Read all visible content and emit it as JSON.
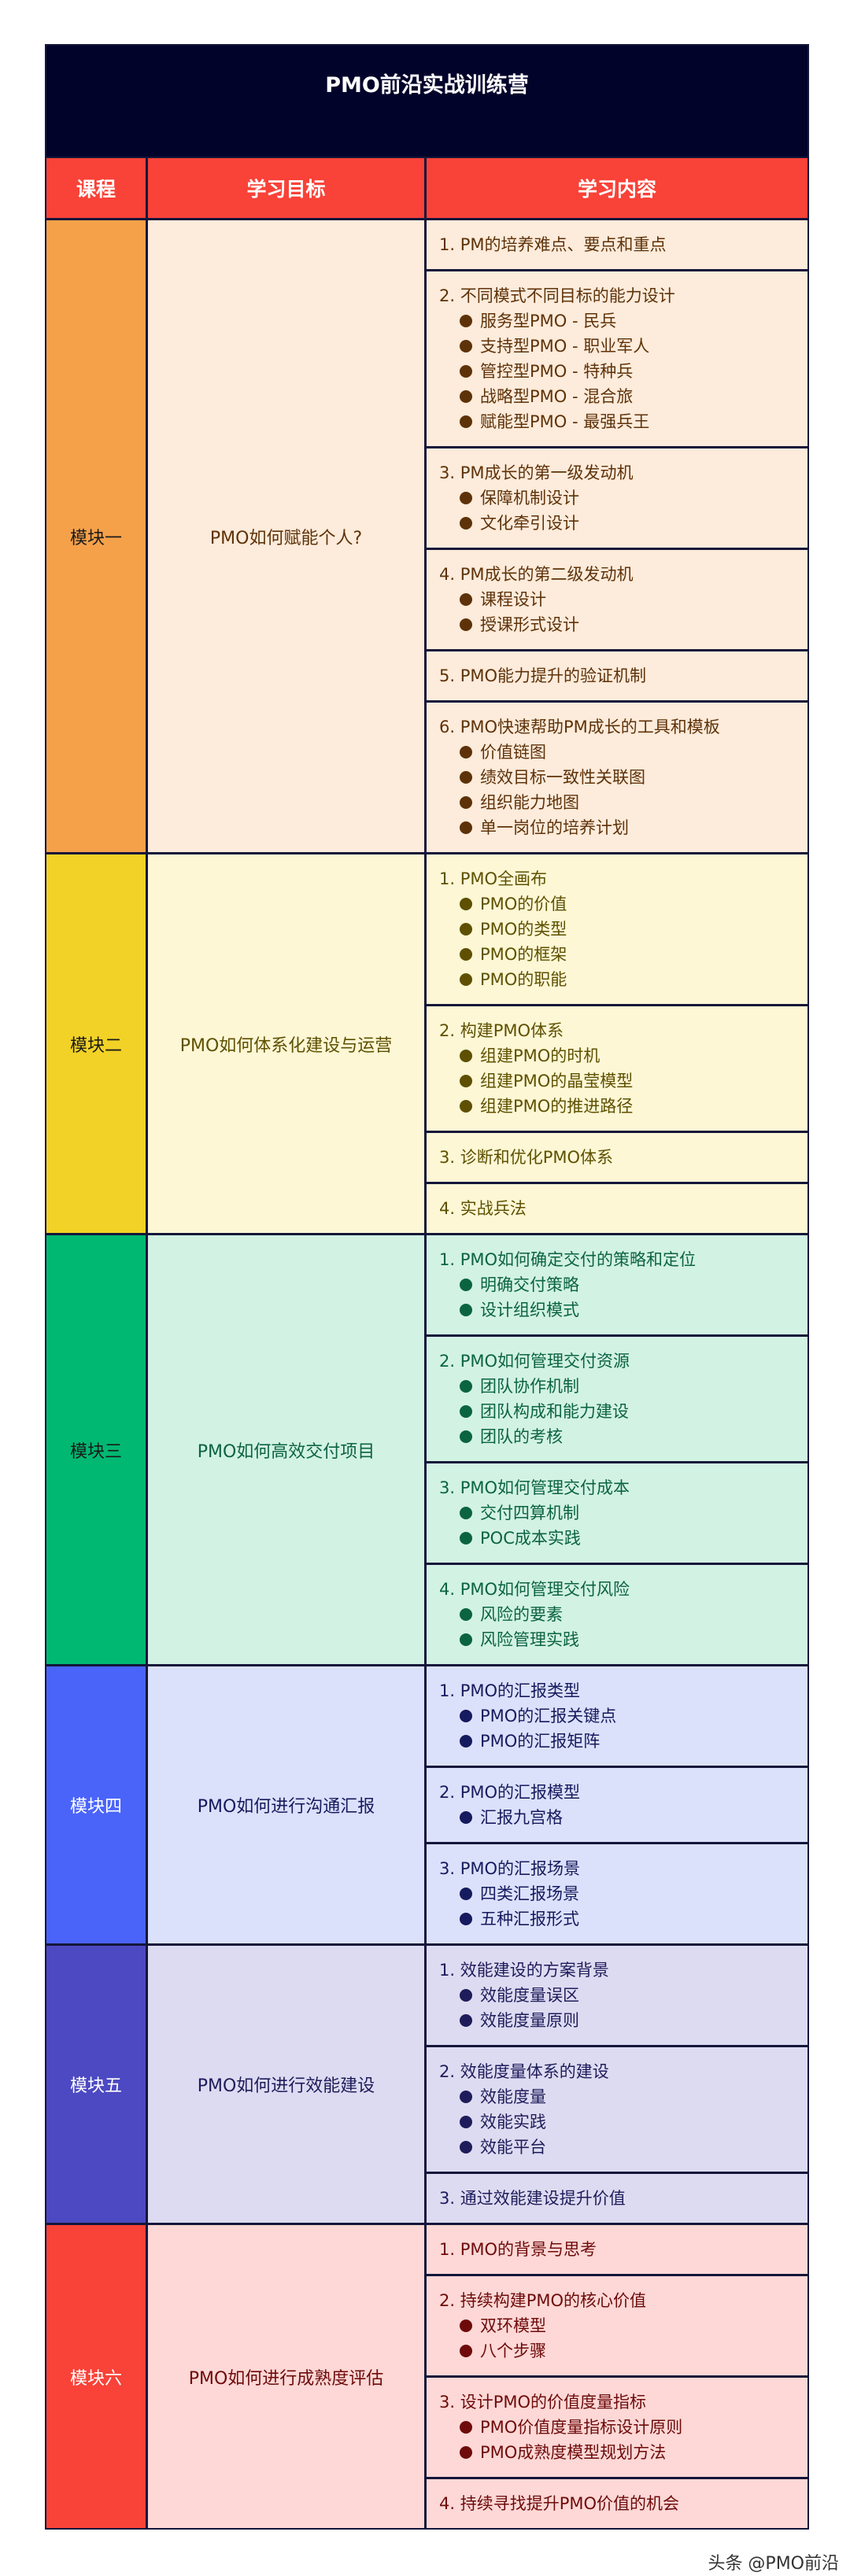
{
  "title": "PMO前沿实战训练营",
  "headers": [
    "课程",
    "学习目标",
    "学习内容"
  ],
  "colors": {
    "title_bg": "#02032a",
    "header_bg": "#f94238",
    "border": "#14163a"
  },
  "modules": [
    {
      "name": "模块一",
      "goal": "PMO如何赋能个人?",
      "accent": "#f5a14a",
      "bg": "#fdebdb",
      "text": "#5e3208",
      "label_text": "#1a1a1a",
      "items": [
        {
          "title": "1. PM的培养难点、要点和重点",
          "bullets": []
        },
        {
          "title": "2. 不同模式不同目标的能力设计",
          "bullets": [
            "服务型PMO - 民兵",
            "支持型PMO - 职业军人",
            "管控型PMO - 特种兵",
            "战略型PMO - 混合旅",
            "赋能型PMO - 最强兵王"
          ]
        },
        {
          "title": "3. PM成长的第一级发动机",
          "bullets": [
            "保障机制设计",
            "文化牵引设计"
          ]
        },
        {
          "title": "4. PM成长的第二级发动机",
          "bullets": [
            "课程设计",
            "授课形式设计"
          ]
        },
        {
          "title": "5. PMO能力提升的验证机制",
          "bullets": []
        },
        {
          "title": "6. PMO快速帮助PM成长的工具和模板",
          "bullets": [
            "价值链图",
            "绩效目标一致性关联图",
            "组织能力地图",
            "单一岗位的培养计划"
          ]
        }
      ]
    },
    {
      "name": "模块二",
      "goal": "PMO如何体系化建设与运营",
      "accent": "#f2d226",
      "bg": "#fdf7d5",
      "text": "#5e5000",
      "label_text": "#1a1a1a",
      "items": [
        {
          "title": "1. PMO全画布",
          "bullets": [
            "PMO的价值",
            "PMO的类型",
            "PMO的框架",
            "PMO的职能"
          ]
        },
        {
          "title": "2. 构建PMO体系",
          "bullets": [
            "组建PMO的时机",
            "组建PMO的晶莹模型",
            "组建PMO的推进路径"
          ]
        },
        {
          "title": "3. 诊断和优化PMO体系",
          "bullets": []
        },
        {
          "title": "4. 实战兵法",
          "bullets": []
        }
      ]
    },
    {
      "name": "模块三",
      "goal": "PMO如何高效交付项目",
      "accent": "#00b872",
      "bg": "#d2f2e4",
      "text": "#0b6440",
      "label_text": "#1a1a1a",
      "items": [
        {
          "title": "1. PMO如何确定交付的策略和定位",
          "bullets": [
            "明确交付策略",
            "设计组织模式"
          ]
        },
        {
          "title": "2. PMO如何管理交付资源",
          "bullets": [
            "团队协作机制",
            "团队构成和能力建设",
            "团队的考核"
          ]
        },
        {
          "title": "3. PMO如何管理交付成本",
          "bullets": [
            "交付四算机制",
            "POC成本实践"
          ]
        },
        {
          "title": "4. PMO如何管理交付风险",
          "bullets": [
            "风险的要素",
            "风险管理实践"
          ]
        }
      ]
    },
    {
      "name": "模块四",
      "goal": "PMO如何进行沟通汇报",
      "accent": "#4a64fa",
      "bg": "#dbe1fb",
      "text": "#161a5e",
      "label_text": "#ffffff",
      "items": [
        {
          "title": "1. PMO的汇报类型",
          "bullets": [
            "PMO的汇报关键点",
            "PMO的汇报矩阵"
          ]
        },
        {
          "title": "2. PMO的汇报模型",
          "bullets": [
            "汇报九宫格"
          ]
        },
        {
          "title": "3. PMO的汇报场景",
          "bullets": [
            "四类汇报场景",
            "五种汇报形式"
          ]
        }
      ]
    },
    {
      "name": "模块五",
      "goal": "PMO如何进行效能建设",
      "accent": "#4c49c2",
      "bg": "#dddbf1",
      "text": "#1e1c5a",
      "label_text": "#ffffff",
      "items": [
        {
          "title": "1. 效能建设的方案背景",
          "bullets": [
            "效能度量误区",
            "效能度量原则"
          ]
        },
        {
          "title": "2. 效能度量体系的建设",
          "bullets": [
            "效能度量",
            "效能实践",
            "效能平台"
          ]
        },
        {
          "title": "3. 通过效能建设提升价值",
          "bullets": []
        }
      ]
    },
    {
      "name": "模块六",
      "goal": "PMO如何进行成熟度评估",
      "accent": "#f94238",
      "bg": "#fdd8d6",
      "text": "#6e0a0a",
      "label_text": "#ffffff",
      "items": [
        {
          "title": "1. PMO的背景与思考",
          "bullets": []
        },
        {
          "title": "2. 持续构建PMO的核心价值",
          "bullets": [
            "双环模型",
            "八个步骤"
          ]
        },
        {
          "title": "3. 设计PMO的价值度量指标",
          "bullets": [
            "PMO价值度量指标设计原则",
            "PMO成熟度模型规划方法"
          ]
        },
        {
          "title": "4. 持续寻找提升PMO价值的机会",
          "bullets": []
        }
      ]
    }
  ],
  "footer": "头条 @PMO前沿"
}
